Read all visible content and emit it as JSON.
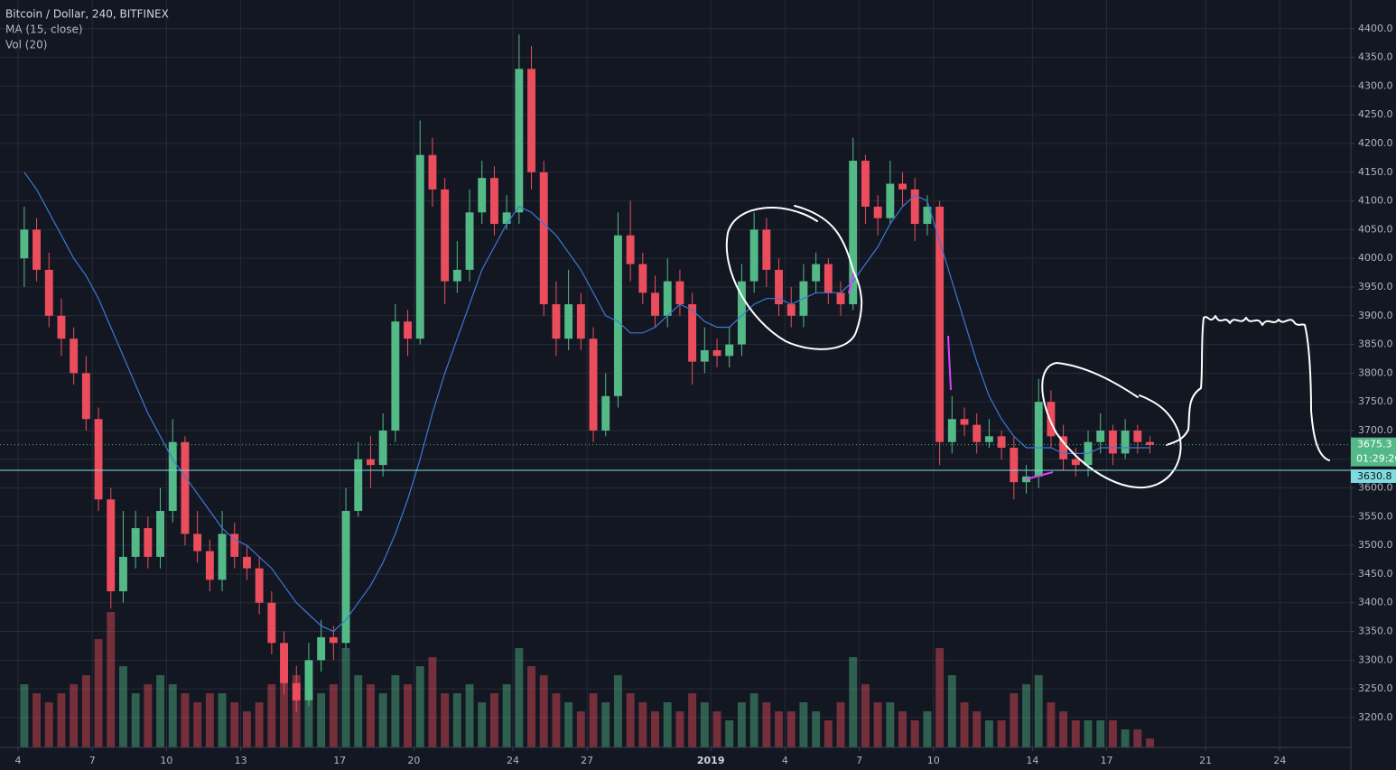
{
  "chart_data": {
    "type": "candlestick",
    "title": "Bitcoin / Dollar, 240, BITFINEX",
    "indicators": [
      "MA (15, close)",
      "Vol (20)"
    ],
    "x": [
      0.25,
      0.75,
      1.25,
      1.75,
      2.25,
      2.75,
      3.25,
      3.75,
      4.25,
      4.75,
      5.25,
      5.75,
      6.25,
      6.75,
      7.25,
      7.75,
      8.25,
      8.75,
      9.25,
      9.75,
      10.25,
      10.75,
      11.25,
      11.75,
      12.25,
      12.75,
      13.25,
      13.75,
      14.25,
      14.75,
      15.25,
      15.75,
      16.25,
      16.75,
      17.25,
      17.75,
      18.25,
      18.75,
      19.25,
      19.75,
      20.25,
      20.75,
      21.25,
      21.75,
      22.25,
      22.75,
      23.25,
      23.75,
      24.25,
      24.75,
      25.25,
      25.75,
      26.25,
      26.75,
      27.25,
      27.75,
      28.25,
      28.75,
      29.25,
      29.75,
      30.25,
      30.75,
      31.25,
      31.75,
      32.25,
      32.75,
      33.25,
      33.75,
      34.25,
      34.75,
      35.25,
      35.75,
      36.25,
      36.75,
      37.25,
      37.75,
      38.25,
      38.75,
      39.25,
      39.75,
      40.25,
      40.75,
      41.25,
      41.75,
      42.25,
      42.75,
      43.25,
      43.75,
      44.25,
      44.75,
      45.25,
      45.75
    ],
    "open": [
      4000,
      4050,
      3980,
      3900,
      3860,
      3800,
      3720,
      3580,
      3420,
      3480,
      3530,
      3480,
      3560,
      3680,
      3520,
      3490,
      3440,
      3520,
      3480,
      3460,
      3400,
      3330,
      3260,
      3230,
      3300,
      3340,
      3330,
      3560,
      3650,
      3640,
      3700,
      3890,
      3860,
      4180,
      4120,
      3960,
      3980,
      4080,
      4140,
      4060,
      4080,
      4330,
      4150,
      3920,
      3860,
      3920,
      3860,
      3700,
      3760,
      4040,
      3990,
      3940,
      3900,
      3960,
      3920,
      3820,
      3840,
      3830,
      3850,
      3960,
      4050,
      3980,
      3920,
      3900,
      3960,
      3990,
      3940,
      3920,
      4170,
      4090,
      4070,
      4130,
      4120,
      4060,
      4090,
      3680,
      3720,
      3710,
      3680,
      3690,
      3670,
      3610,
      3620,
      3750,
      3690,
      3650,
      3640,
      3680,
      3700,
      3660,
      3700,
      3680
    ],
    "high": [
      4090,
      4070,
      4010,
      3930,
      3880,
      3830,
      3740,
      3600,
      3560,
      3560,
      3550,
      3600,
      3720,
      3690,
      3560,
      3510,
      3560,
      3540,
      3500,
      3480,
      3420,
      3350,
      3290,
      3330,
      3370,
      3360,
      3600,
      3680,
      3690,
      3730,
      3920,
      3910,
      4240,
      4210,
      4140,
      4030,
      4120,
      4170,
      4160,
      4110,
      4390,
      4370,
      4170,
      3960,
      3980,
      3940,
      3880,
      3800,
      4080,
      4100,
      4010,
      3970,
      4000,
      3980,
      3940,
      3880,
      3860,
      3880,
      3990,
      4080,
      4070,
      4000,
      3950,
      3990,
      4010,
      4000,
      3960,
      4210,
      4180,
      4110,
      4170,
      4150,
      4140,
      4110,
      4100,
      3760,
      3740,
      3730,
      3720,
      3700,
      3690,
      3640,
      3790,
      3770,
      3710,
      3670,
      3700,
      3730,
      3710,
      3720,
      3710,
      3690
    ],
    "low": [
      3950,
      3960,
      3880,
      3830,
      3780,
      3700,
      3560,
      3390,
      3400,
      3460,
      3460,
      3460,
      3540,
      3500,
      3470,
      3420,
      3420,
      3460,
      3440,
      3380,
      3310,
      3240,
      3210,
      3220,
      3280,
      3300,
      3320,
      3550,
      3600,
      3620,
      3680,
      3830,
      3850,
      4090,
      3920,
      3940,
      3960,
      4060,
      4040,
      4050,
      4060,
      4120,
      3900,
      3830,
      3840,
      3840,
      3680,
      3690,
      3740,
      3960,
      3920,
      3880,
      3880,
      3900,
      3780,
      3800,
      3810,
      3810,
      3830,
      3940,
      3950,
      3900,
      3880,
      3880,
      3940,
      3920,
      3900,
      3910,
      4060,
      4040,
      4060,
      4090,
      4030,
      4040,
      3640,
      3660,
      3690,
      3660,
      3670,
      3650,
      3580,
      3590,
      3600,
      3670,
      3630,
      3620,
      3620,
      3660,
      3640,
      3650,
      3660,
      3660
    ],
    "close": [
      4050,
      3980,
      3900,
      3860,
      3800,
      3720,
      3580,
      3420,
      3480,
      3530,
      3480,
      3560,
      3680,
      3520,
      3490,
      3440,
      3520,
      3480,
      3460,
      3400,
      3330,
      3260,
      3230,
      3300,
      3340,
      3330,
      3560,
      3650,
      3640,
      3700,
      3890,
      3860,
      4180,
      4120,
      3960,
      3980,
      4080,
      4140,
      4060,
      4080,
      4330,
      4150,
      3920,
      3860,
      3920,
      3860,
      3700,
      3760,
      4040,
      3990,
      3940,
      3900,
      3960,
      3920,
      3820,
      3840,
      3830,
      3850,
      3960,
      4050,
      3980,
      3920,
      3900,
      3960,
      3990,
      3940,
      3920,
      4170,
      4090,
      4070,
      4130,
      4120,
      4060,
      4090,
      3680,
      3720,
      3710,
      3680,
      3690,
      3670,
      3610,
      3620,
      3750,
      3690,
      3650,
      3640,
      3680,
      3700,
      3660,
      3700,
      3680,
      3675
    ],
    "ma": [
      4150,
      4120,
      4080,
      4040,
      4000,
      3970,
      3930,
      3880,
      3830,
      3780,
      3730,
      3690,
      3650,
      3620,
      3590,
      3560,
      3530,
      3510,
      3500,
      3480,
      3460,
      3430,
      3400,
      3380,
      3360,
      3350,
      3370,
      3400,
      3430,
      3470,
      3520,
      3580,
      3650,
      3730,
      3800,
      3860,
      3920,
      3980,
      4020,
      4060,
      4090,
      4080,
      4060,
      4040,
      4010,
      3980,
      3940,
      3900,
      3890,
      3870,
      3870,
      3880,
      3900,
      3920,
      3910,
      3890,
      3880,
      3880,
      3900,
      3920,
      3930,
      3930,
      3920,
      3930,
      3940,
      3940,
      3940,
      3960,
      3990,
      4020,
      4060,
      4090,
      4110,
      4100,
      4030,
      3960,
      3890,
      3820,
      3760,
      3720,
      3690,
      3670,
      3670,
      3670,
      3660,
      3660,
      3660,
      3670,
      3670,
      3670,
      3670,
      3670
    ],
    "volume": [
      35,
      30,
      25,
      30,
      35,
      40,
      60,
      75,
      45,
      30,
      35,
      40,
      35,
      30,
      25,
      30,
      30,
      25,
      20,
      25,
      35,
      45,
      40,
      30,
      30,
      35,
      55,
      40,
      35,
      30,
      40,
      35,
      45,
      50,
      30,
      30,
      35,
      25,
      30,
      35,
      55,
      45,
      40,
      30,
      25,
      20,
      30,
      25,
      40,
      30,
      25,
      20,
      25,
      20,
      30,
      25,
      20,
      15,
      25,
      30,
      25,
      20,
      20,
      25,
      20,
      15,
      25,
      50,
      35,
      25,
      25,
      20,
      15,
      20,
      55,
      40,
      25,
      20,
      15,
      15,
      30,
      35,
      40,
      25,
      20,
      15,
      15,
      15,
      15,
      10,
      10,
      5
    ],
    "vlim": [
      0,
      100
    ],
    "up_color": "#53b987",
    "down_color": "#eb4d5c",
    "ma_color": "#3c78d8",
    "xlim": [
      -0.73,
      53.87
    ],
    "xticks": [
      {
        "value": 0,
        "label": "4"
      },
      {
        "value": 3,
        "label": "7"
      },
      {
        "value": 6,
        "label": "10"
      },
      {
        "value": 9,
        "label": "13"
      },
      {
        "value": 13,
        "label": "17"
      },
      {
        "value": 16,
        "label": "20"
      },
      {
        "value": 20,
        "label": "24"
      },
      {
        "value": 23,
        "label": "27"
      },
      {
        "value": 28,
        "label": "2019"
      },
      {
        "value": 31,
        "label": "4"
      },
      {
        "value": 34,
        "label": "7"
      },
      {
        "value": 37,
        "label": "10"
      },
      {
        "value": 41,
        "label": "14"
      },
      {
        "value": 44,
        "label": "17"
      },
      {
        "value": 48,
        "label": "21"
      },
      {
        "value": 51,
        "label": "24"
      }
    ],
    "ylim": [
      3148,
      4450
    ],
    "yticks": [
      {
        "value": 4400,
        "label": "4400.0"
      },
      {
        "value": 4350,
        "label": "4350.0"
      },
      {
        "value": 4300,
        "label": "4300.0"
      },
      {
        "value": 4250,
        "label": "4250.0"
      },
      {
        "value": 4200,
        "label": "4200.0"
      },
      {
        "value": 4150,
        "label": "4150.0"
      },
      {
        "value": 4100,
        "label": "4100.0"
      },
      {
        "value": 4050,
        "label": "4050.0"
      },
      {
        "value": 4000,
        "label": "4000.0"
      },
      {
        "value": 3950,
        "label": "3950.0"
      },
      {
        "value": 3900,
        "label": "3900.0"
      },
      {
        "value": 3850,
        "label": "3850.0"
      },
      {
        "value": 3800,
        "label": "3800.0"
      },
      {
        "value": 3750,
        "label": "3750.0"
      },
      {
        "value": 3700,
        "label": "3700.0"
      },
      {
        "value": 3650,
        "label": "3650.0"
      },
      {
        "value": 3600,
        "label": "3600.0"
      },
      {
        "value": 3550,
        "label": "3550.0"
      },
      {
        "value": 3500,
        "label": "3500.0"
      },
      {
        "value": 3450,
        "label": "3450.0"
      },
      {
        "value": 3400,
        "label": "3400.0"
      },
      {
        "value": 3350,
        "label": "3350.0"
      },
      {
        "value": 3300,
        "label": "3300.0"
      },
      {
        "value": 3250,
        "label": "3250.0"
      },
      {
        "value": 3200,
        "label": "3200.0"
      }
    ],
    "grid": true,
    "last_price": 3675.3,
    "countdown": "01:29:26",
    "line_price": 3630.8
  }
}
